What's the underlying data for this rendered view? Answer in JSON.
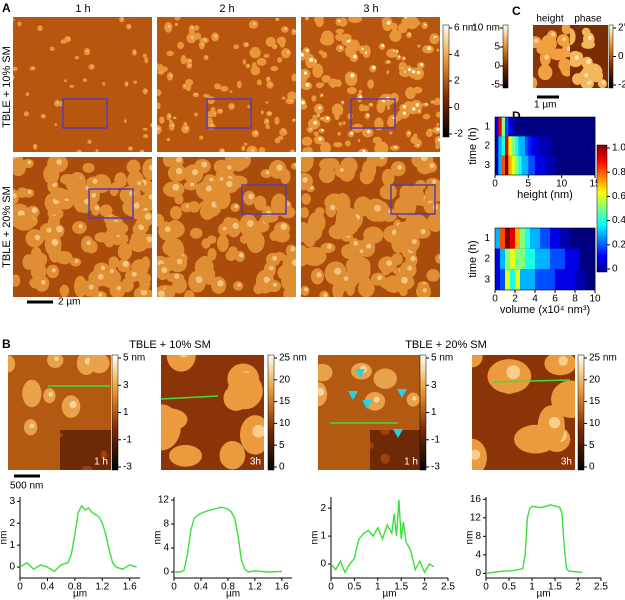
{
  "panels": {
    "A": {
      "label": "A",
      "columns": [
        "1 h",
        "2 h",
        "3 h"
      ],
      "rows": [
        "TBLE + 10% SM",
        "TBLE + 20% SM"
      ],
      "colorbar_ticks": [
        {
          "value": 6,
          "label": "6 nm"
        },
        4,
        2,
        0,
        -2
      ],
      "scale": "2 µm"
    },
    "B": {
      "label": "B",
      "groups": [
        "TBLE + 10% SM",
        "TBLE + 20% SM"
      ],
      "scale": "500 nm",
      "images": [
        {
          "time": "1 h",
          "colorbar_ticks": [
            {
              "value": 5,
              "label": "5 nm"
            },
            3,
            1,
            -1,
            -3
          ]
        },
        {
          "time": "3h",
          "colorbar_ticks": [
            {
              "value": 25,
              "label": "25 nm"
            },
            20,
            15,
            10,
            5,
            0
          ]
        },
        {
          "time": "1 h",
          "colorbar_ticks": [
            {
              "value": 5,
              "label": "5 nm"
            },
            3,
            1,
            -1,
            -3
          ]
        },
        {
          "time": "3h",
          "colorbar_ticks": [
            {
              "value": 25,
              "label": "25 nm"
            },
            20,
            15,
            10,
            5,
            0
          ]
        }
      ],
      "profiles": [
        {
          "xlabel": "µm",
          "ylabel": "nm",
          "xlim": [
            0,
            1.75
          ],
          "ylim": [
            -0.5,
            3.2
          ],
          "xticks": [
            0,
            0.4,
            0.8,
            1.2,
            1.6
          ],
          "yticks": [
            0,
            1,
            2,
            3
          ],
          "x": [
            0,
            0.1,
            0.2,
            0.3,
            0.4,
            0.5,
            0.6,
            0.7,
            0.75,
            0.8,
            0.85,
            0.9,
            0.95,
            1.0,
            1.05,
            1.1,
            1.15,
            1.2,
            1.25,
            1.3,
            1.35,
            1.4,
            1.5,
            1.6,
            1.7
          ],
          "y": [
            0,
            0.2,
            -0.1,
            0.1,
            0,
            -0.2,
            0.1,
            0.2,
            0.6,
            1.5,
            2.5,
            2.8,
            2.6,
            2.7,
            2.5,
            2.4,
            2.3,
            2.0,
            1.5,
            0.8,
            0.2,
            0,
            -0.1,
            0.1,
            0
          ]
        },
        {
          "xlabel": "µm",
          "ylabel": "nm",
          "xlim": [
            0,
            1.75
          ],
          "ylim": [
            -1,
            12.5
          ],
          "xticks": [
            0,
            0.4,
            0.8,
            1.2,
            1.6
          ],
          "yticks": [
            0,
            4,
            8,
            12
          ],
          "x": [
            0,
            0.1,
            0.15,
            0.2,
            0.25,
            0.3,
            0.4,
            0.5,
            0.6,
            0.7,
            0.8,
            0.85,
            0.9,
            0.95,
            1.0,
            1.05,
            1.1,
            1.2,
            1.4,
            1.6
          ],
          "y": [
            0,
            0,
            0.3,
            3,
            7,
            9,
            9.8,
            10.2,
            10.5,
            10.8,
            10.5,
            10,
            9,
            6,
            2,
            0.5,
            0,
            0.2,
            0,
            0.1
          ]
        },
        {
          "xlabel": "µm",
          "ylabel": "nm",
          "xlim": [
            0,
            2.5
          ],
          "ylim": [
            -0.5,
            2.4
          ],
          "xticks": [
            0,
            0.5,
            1,
            1.5,
            2,
            2.5
          ],
          "yticks": [
            0,
            1,
            2
          ],
          "x": [
            0,
            0.1,
            0.2,
            0.3,
            0.4,
            0.5,
            0.55,
            0.6,
            0.7,
            0.8,
            0.9,
            1.0,
            1.1,
            1.2,
            1.3,
            1.35,
            1.4,
            1.45,
            1.5,
            1.55,
            1.6,
            1.7,
            1.8,
            1.9,
            2.0,
            2.1,
            2.2
          ],
          "y": [
            0,
            -0.2,
            0.1,
            -0.3,
            0,
            0.2,
            0.6,
            0.9,
            1.1,
            1.2,
            1.0,
            1.3,
            0.9,
            1.4,
            1.1,
            1.8,
            1.0,
            2.3,
            0.9,
            1.5,
            0.8,
            0.5,
            -0.2,
            0.1,
            -0.3,
            0,
            -0.1
          ]
        },
        {
          "xlabel": "µm",
          "ylabel": "nm",
          "xlim": [
            0,
            2.5
          ],
          "ylim": [
            -1,
            16.5
          ],
          "xticks": [
            0,
            0.5,
            1,
            1.5,
            2,
            2.5
          ],
          "yticks": [
            0,
            4,
            8,
            12,
            16
          ],
          "x": [
            0,
            0.2,
            0.4,
            0.6,
            0.8,
            0.85,
            0.9,
            0.95,
            1.0,
            1.2,
            1.4,
            1.6,
            1.65,
            1.7,
            1.75,
            1.8,
            2.0,
            2.1
          ],
          "y": [
            0,
            0.3,
            0.5,
            0.6,
            1,
            4,
            12,
            14,
            14.5,
            14.2,
            14.8,
            14.3,
            13,
            6,
            1,
            0.5,
            0.3,
            0.2
          ]
        }
      ]
    },
    "C": {
      "label": "C",
      "height": "height",
      "phase": "phase",
      "height_ticks": [
        {
          "value": 10,
          "label": "10 nm"
        },
        5,
        0,
        -5
      ],
      "phase_ticks": [
        {
          "value": 2,
          "label": "2°"
        },
        0,
        -2
      ],
      "scale": "1 µm"
    },
    "D": {
      "label": "D",
      "colorbar_ticks": [
        {
          "value": 1,
          "label": "1.0"
        },
        0.8,
        0.6,
        0.4,
        0.2,
        0
      ],
      "heatmaps": [
        {
          "xlabel": "height (nm)",
          "ylabel": "time (h)",
          "xlim": [
            0,
            15
          ],
          "xticks": [
            0,
            5,
            10,
            15
          ],
          "yticks": [
            1,
            2,
            3
          ],
          "bins": [
            0,
            0.5,
            1,
            1.5,
            2,
            2.5,
            3,
            3.5,
            4,
            4.5,
            5,
            5.5,
            6,
            6.5,
            7,
            7.5,
            8,
            8.5,
            9,
            9.5,
            10,
            10.5,
            11,
            11.5,
            12,
            12.5,
            13,
            13.5,
            14,
            14.5,
            15
          ],
          "values": [
            [
              0.1,
              0.9,
              0.5,
              0.2,
              0.1,
              0.05,
              0,
              0,
              0,
              0,
              0,
              0,
              0,
              0,
              0,
              0,
              0,
              0,
              0,
              0,
              0,
              0,
              0,
              0,
              0,
              0,
              0,
              0,
              0,
              0
            ],
            [
              0.05,
              0.3,
              0.4,
              0.9,
              0.6,
              0.5,
              0.4,
              0.3,
              0.3,
              0.2,
              0.15,
              0.1,
              0.1,
              0.05,
              0.05,
              0.05,
              0.05,
              0,
              0,
              0,
              0,
              0,
              0,
              0,
              0,
              0,
              0,
              0,
              0,
              0
            ],
            [
              0.05,
              0.3,
              0.8,
              1.0,
              0.7,
              0.6,
              0.5,
              0.4,
              0.3,
              0.3,
              0.2,
              0.2,
              0.1,
              0.1,
              0.1,
              0.05,
              0.05,
              0.05,
              0,
              0,
              0,
              0,
              0,
              0,
              0,
              0,
              0,
              0,
              0,
              0
            ]
          ]
        },
        {
          "xlabel": "volume (x10⁴ nm³)",
          "ylabel": "time (h)",
          "xlim": [
            0,
            10
          ],
          "xticks": [
            0,
            2,
            4,
            6,
            8,
            10
          ],
          "yticks": [
            1,
            2,
            3
          ],
          "bins": [
            0,
            0.5,
            1,
            1.5,
            2,
            2.5,
            3,
            3.5,
            4,
            4.5,
            5,
            5.5,
            6,
            6.5,
            7,
            7.5,
            8,
            8.5,
            9,
            9.5,
            10
          ],
          "values": [
            [
              0.3,
              0.8,
              1.0,
              0.9,
              0.7,
              0.5,
              0.4,
              0.3,
              0.3,
              0.2,
              0.2,
              0.1,
              0.1,
              0.05,
              0.05,
              0,
              0,
              0,
              0,
              0
            ],
            [
              0.1,
              0.3,
              0.5,
              0.6,
              0.5,
              0.5,
              0.4,
              0.4,
              0.3,
              0.3,
              0.3,
              0.2,
              0.2,
              0.2,
              0.1,
              0.1,
              0.1,
              0,
              0,
              0
            ],
            [
              0.1,
              0.2,
              0.6,
              0.4,
              0.6,
              0.3,
              0.3,
              0.3,
              0.2,
              0.2,
              0.2,
              0.2,
              0.1,
              0.1,
              0.1,
              0.1,
              0.05,
              0.05,
              0,
              0
            ]
          ]
        }
      ]
    }
  }
}
